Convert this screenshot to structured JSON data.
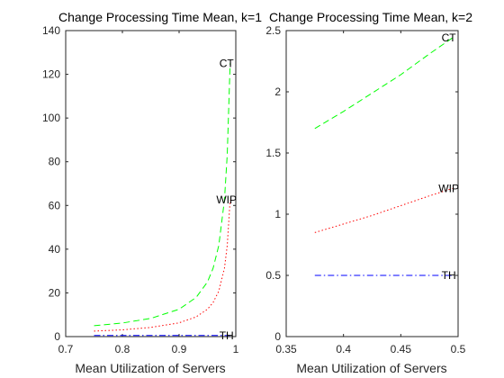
{
  "chart_data": [
    {
      "type": "line",
      "title": "Change Processing Time Mean, k=1",
      "xlabel": "Mean Utilization of Servers",
      "ylabel": "",
      "xlim": [
        0.7,
        1.0
      ],
      "ylim": [
        0,
        140
      ],
      "xticks": [
        "0.7",
        "0.8",
        "0.9",
        "1"
      ],
      "yticks": [
        "0",
        "20",
        "40",
        "60",
        "80",
        "100",
        "120",
        "140"
      ],
      "xtick_values": [
        0.7,
        0.8,
        0.9,
        1.0
      ],
      "ytick_values": [
        0,
        20,
        40,
        60,
        80,
        100,
        120,
        140
      ],
      "grid": false,
      "series": [
        {
          "name": "CT",
          "color": "#00ff00",
          "style": "dashed",
          "x": [
            0.75,
            0.8,
            0.85,
            0.9,
            0.93,
            0.95,
            0.96,
            0.97,
            0.98,
            0.985,
            0.99
          ],
          "y": [
            5.0,
            6.2,
            8.3,
            12.5,
            17.9,
            25.0,
            31.3,
            41.7,
            62.5,
            83.3,
            125.0
          ]
        },
        {
          "name": "WIP",
          "color": "#ff0000",
          "style": "dotted",
          "x": [
            0.75,
            0.8,
            0.85,
            0.9,
            0.93,
            0.95,
            0.96,
            0.97,
            0.98,
            0.985,
            0.99
          ],
          "y": [
            2.5,
            3.1,
            4.2,
            6.3,
            9.0,
            12.5,
            15.6,
            20.8,
            31.3,
            41.7,
            62.5
          ]
        },
        {
          "name": "TH",
          "color": "#0000ff",
          "style": "dashdot",
          "x": [
            0.75,
            0.99
          ],
          "y": [
            0.5,
            0.5
          ]
        }
      ]
    },
    {
      "type": "line",
      "title": "Change Processing Time Mean, k=2",
      "xlabel": "Mean Utilization of Servers",
      "ylabel": "",
      "xlim": [
        0.35,
        0.5
      ],
      "ylim": [
        0,
        2.5
      ],
      "xticks": [
        "0.35",
        "0.4",
        "0.45",
        "0.5"
      ],
      "yticks": [
        "0",
        "0.5",
        "1",
        "1.5",
        "2",
        "2.5"
      ],
      "xtick_values": [
        0.35,
        0.4,
        0.45,
        0.5
      ],
      "ytick_values": [
        0,
        0.5,
        1.0,
        1.5,
        2.0,
        2.5
      ],
      "grid": false,
      "series": [
        {
          "name": "CT",
          "color": "#00ff00",
          "style": "dashed",
          "x": [
            0.375,
            0.4,
            0.425,
            0.45,
            0.475,
            0.495
          ],
          "y": [
            1.7,
            1.84,
            1.99,
            2.14,
            2.31,
            2.44
          ]
        },
        {
          "name": "WIP",
          "color": "#ff0000",
          "style": "dotted",
          "x": [
            0.375,
            0.4,
            0.425,
            0.45,
            0.475,
            0.495
          ],
          "y": [
            0.85,
            0.92,
            0.99,
            1.07,
            1.15,
            1.21
          ]
        },
        {
          "name": "TH",
          "color": "#0000ff",
          "style": "dashdot",
          "x": [
            0.375,
            0.495
          ],
          "y": [
            0.5,
            0.5
          ]
        }
      ]
    }
  ]
}
